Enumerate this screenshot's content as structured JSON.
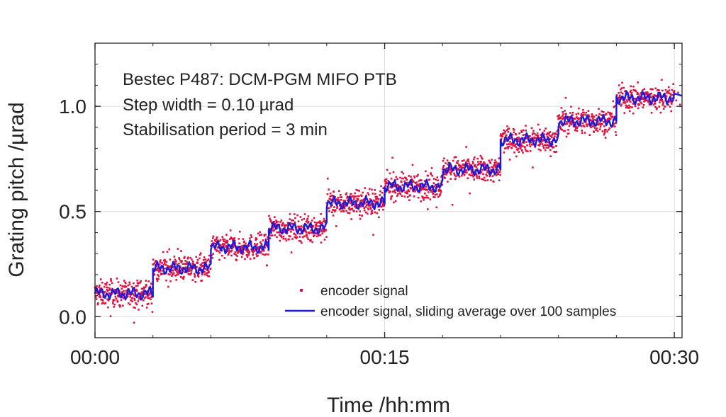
{
  "chart_data": {
    "type": "scatter",
    "title": "",
    "xlabel": "Time /hh:mm",
    "ylabel": "Grating pitch /µrad",
    "xlim": [
      "00:00",
      "00:30"
    ],
    "xlim_minutes": [
      0,
      30.4
    ],
    "ylim": [
      -0.1,
      1.3
    ],
    "grid": true,
    "legend_placement": "bottom-right",
    "x_ticks": [
      {
        "value": 0,
        "label": "00:00"
      },
      {
        "value": 15,
        "label": "00:15"
      },
      {
        "value": 30,
        "label": "00:30"
      }
    ],
    "y_ticks": [
      {
        "value": 0.0,
        "label": "0.0"
      },
      {
        "value": 0.5,
        "label": "0.5"
      },
      {
        "value": 1.0,
        "label": "1.0"
      }
    ],
    "annotations": [
      "Bestec P487: DCM-PGM MIFO PTB",
      "Step width = 0.10 µrad",
      "Stabilisation period = 3 min"
    ],
    "series": [
      {
        "name": "encoder signal",
        "kind": "points",
        "color": "#e0103f",
        "noise_spread": 0.06
      },
      {
        "name": "encoder signal, sliding average over 100 samples",
        "kind": "line",
        "color": "#1a1adf"
      }
    ],
    "steps": [
      {
        "start": "00:00",
        "end": "00:03",
        "level": 0.11
      },
      {
        "start": "00:03",
        "end": "00:06",
        "level": 0.23
      },
      {
        "start": "00:06",
        "end": "00:09",
        "level": 0.33
      },
      {
        "start": "00:09",
        "end": "00:12",
        "level": 0.42
      },
      {
        "start": "00:12",
        "end": "00:15",
        "level": 0.54
      },
      {
        "start": "00:15",
        "end": "00:18",
        "level": 0.62
      },
      {
        "start": "00:18",
        "end": "00:21",
        "level": 0.7
      },
      {
        "start": "00:21",
        "end": "00:24",
        "level": 0.84
      },
      {
        "start": "00:24",
        "end": "00:27",
        "level": 0.93
      },
      {
        "start": "00:27",
        "end": "00:30",
        "level": 1.04
      }
    ]
  }
}
